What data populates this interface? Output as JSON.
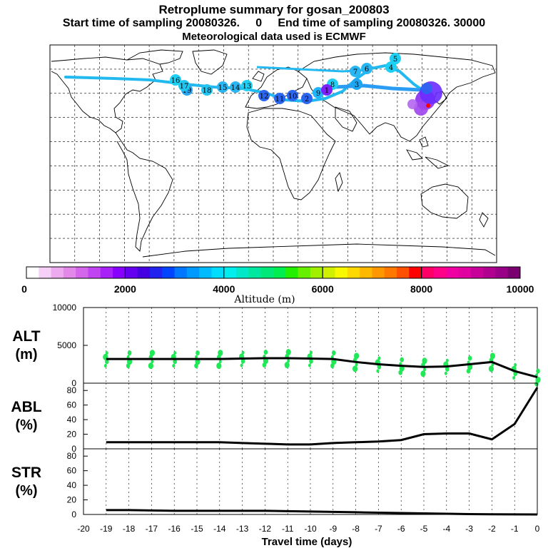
{
  "header": {
    "title": "Retroplume summary for gosan_200803",
    "sampling": "Start time of sampling 20080326.     0     End time of sampling 20080326. 30000",
    "met": "Meteorological data used is ECMWF"
  },
  "colorbar": {
    "ticks": [
      "0",
      "2000",
      "4000",
      "6000",
      "8000",
      "10000"
    ],
    "label": "Altitude (m)",
    "colors": [
      "#ffffff",
      "#f6d0f6",
      "#eeaaee",
      "#e288e8",
      "#d466ec",
      "#c044f2",
      "#a822f8",
      "#8800ff",
      "#6600f0",
      "#4400e0",
      "#2222f0",
      "#0044ff",
      "#0077ff",
      "#0099ff",
      "#00bbff",
      "#00ddff",
      "#00eeee",
      "#00e8c8",
      "#00e8a0",
      "#00e878",
      "#00ee50",
      "#22f000",
      "#66f000",
      "#a0f000",
      "#d0f000",
      "#f8f800",
      "#ffd800",
      "#ffb800",
      "#ff9800",
      "#ff7800",
      "#ff5000",
      "#ff0000",
      "#ff0066",
      "#ff0088",
      "#f000a0",
      "#e000a0",
      "#c8009a",
      "#b00090",
      "#980088",
      "#7a0070"
    ]
  },
  "map": {
    "clusters": [
      "19",
      "18",
      "17",
      "16",
      "15",
      "14",
      "13",
      "12",
      "11",
      "10",
      "9",
      "8",
      "7",
      "6",
      "5",
      "4",
      "3",
      "2",
      "1"
    ]
  },
  "chart_data": [
    {
      "type": "line",
      "id": "alt",
      "title": "ALT",
      "ylabel": "ALT\n(m)",
      "unit": "(m)",
      "ylim": [
        0,
        10000
      ],
      "yticks": [
        "0",
        "5000",
        "10000"
      ],
      "x": [
        -19,
        -18,
        -17,
        -16,
        -15,
        -14,
        -13,
        -12,
        -11,
        -10,
        -9,
        -8,
        -7,
        -6,
        -5,
        -4,
        -3,
        -2,
        -1,
        0
      ],
      "values": [
        3200,
        3200,
        3200,
        3200,
        3200,
        3200,
        3250,
        3300,
        3300,
        3250,
        3200,
        2800,
        2500,
        2300,
        2150,
        2200,
        2500,
        2800,
        1600,
        800
      ]
    },
    {
      "type": "line",
      "id": "abl",
      "title": "ABL",
      "ylabel": "ABL\n(%)",
      "unit": "(%)",
      "ylim": [
        0,
        90
      ],
      "yticks": [
        "0",
        "20",
        "40",
        "60",
        "80"
      ],
      "x": [
        -19,
        -18,
        -17,
        -16,
        -15,
        -14,
        -13,
        -12,
        -11,
        -10,
        -9,
        -8,
        -7,
        -6,
        -5,
        -4,
        -3,
        -2,
        -1,
        0
      ],
      "values": [
        9,
        9,
        9,
        9,
        9,
        9,
        8,
        7,
        6,
        6,
        8,
        9,
        10,
        12,
        20,
        21,
        21,
        13,
        34,
        84
      ]
    },
    {
      "type": "line",
      "id": "str",
      "title": "STR",
      "ylabel": "STR\n(%)",
      "unit": "(%)",
      "ylim": [
        0,
        90
      ],
      "yticks": [
        "0",
        "20",
        "40",
        "60",
        "80"
      ],
      "x": [
        -19,
        -18,
        -17,
        -16,
        -15,
        -14,
        -13,
        -12,
        -11,
        -10,
        -9,
        -8,
        -7,
        -6,
        -5,
        -4,
        -3,
        -2,
        -1,
        0
      ],
      "values": [
        6,
        6,
        5.5,
        5,
        5,
        5,
        5,
        5,
        4.5,
        4,
        3.5,
        3,
        2.5,
        2,
        1.5,
        1,
        0.5,
        0.3,
        0.1,
        0
      ]
    }
  ],
  "xaxis": {
    "ticks": [
      "-20",
      "-19",
      "-18",
      "-17",
      "-16",
      "-15",
      "-14",
      "-13",
      "-12",
      "-11",
      "-10",
      "-9",
      "-8",
      "-7",
      "-6",
      "-5",
      "-4",
      "-3",
      "-2",
      "-1",
      "0"
    ],
    "label": "Travel time (days)"
  }
}
